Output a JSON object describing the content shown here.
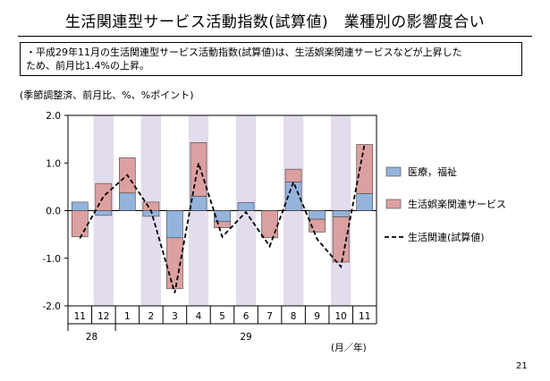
{
  "header": {
    "title": "生活関連型サービス活動指数(試算値)　業種別の影響度合い"
  },
  "summary": {
    "lines": [
      "・平成29年11月の生活関連型サービス活動指数(試算値)は、生活娯楽関連サービスなどが上昇した",
      "ため、前月比1.4%の上昇。"
    ]
  },
  "units_note": "(季節調整済、前月比、%、%ポイント)",
  "period_note": "(月／年)",
  "page_number": "21",
  "chart_data": {
    "type": "bar",
    "stacked": true,
    "categories": [
      "11",
      "12",
      "1",
      "2",
      "3",
      "4",
      "5",
      "6",
      "7",
      "8",
      "9",
      "10",
      "11"
    ],
    "year_groups": [
      {
        "label": "28",
        "start": 0,
        "end": 1
      },
      {
        "label": "29",
        "start": 2,
        "end": 12
      }
    ],
    "ylim": [
      -2.0,
      2.0
    ],
    "yticks": [
      "2.0",
      "1.0",
      "0.0",
      "-1.0",
      "-2.0"
    ],
    "ytick_values": [
      2.0,
      1.0,
      0.0,
      -1.0,
      -2.0
    ],
    "series": [
      {
        "name": "医療，福祉",
        "kind": "bar",
        "color": "#94b4dc",
        "values": [
          0.18,
          -0.1,
          0.37,
          -0.12,
          -0.57,
          0.3,
          -0.23,
          0.17,
          0.0,
          0.6,
          -0.18,
          -0.13,
          0.36
        ]
      },
      {
        "name": "生活娯楽関連サービス",
        "kind": "bar",
        "color": "#dca0a0",
        "values": [
          -0.55,
          0.57,
          0.74,
          0.18,
          -1.07,
          1.13,
          -0.13,
          0.0,
          -0.57,
          0.27,
          -0.27,
          -0.95,
          1.03
        ]
      },
      {
        "name": "生活関連(試算値)",
        "kind": "line",
        "color": "#000000",
        "values": [
          -0.58,
          0.3,
          0.75,
          0.0,
          -1.73,
          1.0,
          -0.55,
          -0.03,
          -0.75,
          0.6,
          -0.6,
          -1.18,
          1.4
        ]
      }
    ],
    "band_color": "#e3dcec",
    "legend_position": "right"
  }
}
